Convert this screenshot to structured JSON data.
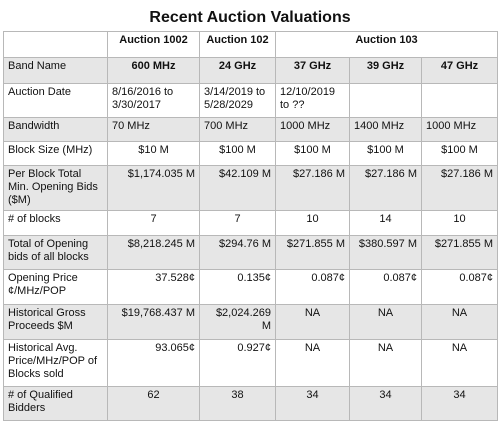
{
  "title": "Recent Auction Valuations",
  "header": {
    "auction_1002": "Auction 1002",
    "auction_102": "Auction 102",
    "auction_103": "Auction 103"
  },
  "rows": {
    "band_name": {
      "label": "Band Name",
      "values": [
        "600 MHz",
        "24 GHz",
        "37 GHz",
        "39 GHz",
        "47 GHz"
      ]
    },
    "auction_date": {
      "label": "Auction Date",
      "values": [
        "8/16/2016 to 3/30/2017",
        "3/14/2019 to 5/28/2029",
        "12/10/2019 to ??",
        "",
        ""
      ]
    },
    "bandwidth": {
      "label": "Bandwidth",
      "values": [
        "70 MHz",
        "700 MHz",
        "1000 MHz",
        "1400 MHz",
        "1000 MHz"
      ]
    },
    "block_size": {
      "label": "Block Size (MHz)",
      "values": [
        "$10 M",
        "$100 M",
        "$100 M",
        "$100 M",
        "$100 M"
      ]
    },
    "per_block_bids": {
      "label": "Per Block Total Min. Opening Bids ($M)",
      "values": [
        "$1,174.035 M",
        "$42.109 M",
        "$27.186 M",
        "$27.186 M",
        "$27.186 M"
      ]
    },
    "num_blocks": {
      "label": "# of blocks",
      "values": [
        "7",
        "7",
        "10",
        "14",
        "10"
      ]
    },
    "total_opening_bids": {
      "label": "Total of Opening bids of all blocks",
      "values": [
        "$8,218.245 M",
        "$294.76 M",
        "$271.855 M",
        "$380.597 M",
        "$271.855 M"
      ]
    },
    "opening_price": {
      "label": "Opening Price ¢/MHz/POP",
      "values": [
        "37.528¢",
        "0.135¢",
        "0.087¢",
        "0.087¢",
        "0.087¢"
      ]
    },
    "gross_proceeds": {
      "label": "Historical Gross Proceeds $M",
      "values": [
        "$19,768.437 M",
        "$2,024.269 M",
        "NA",
        "NA",
        "NA"
      ]
    },
    "avg_price": {
      "label": "Historical Avg. Price/MHz/POP of Blocks sold",
      "values": [
        "93.065¢",
        "0.927¢",
        "NA",
        "NA",
        "NA"
      ]
    },
    "qualified_bidders": {
      "label": "# of Qualified Bidders",
      "values": [
        "62",
        "38",
        "34",
        "34",
        "34"
      ]
    }
  }
}
